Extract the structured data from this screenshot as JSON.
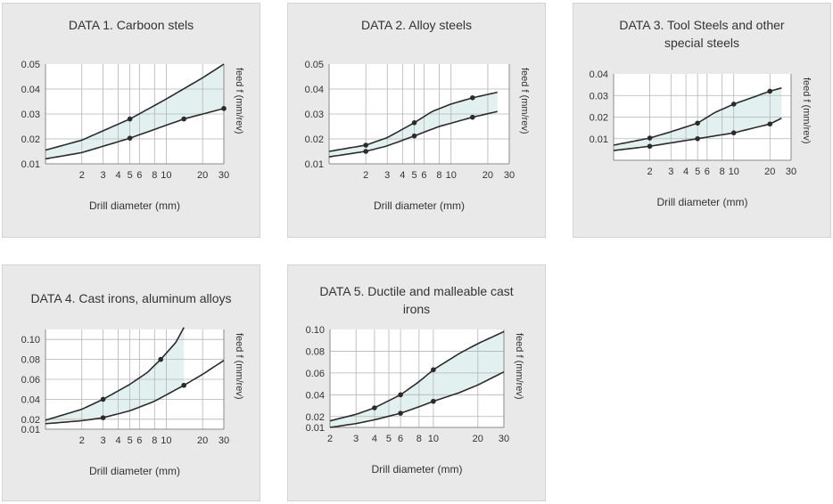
{
  "colors": {
    "panel_bg": "#e9e9e9",
    "plot_bg": "#ffffff",
    "band_fill": "#e3f0f0",
    "line": "#2b2b2b",
    "grid": "#b4b4b4",
    "text": "#333333"
  },
  "chart_data": [
    {
      "type": "line",
      "title": "DATA 1. Carboon stels",
      "xlabel": "Drill diameter (mm)",
      "ylabel": "feed f (mm/rev)",
      "x_scale": "log",
      "xlim": [
        1,
        30
      ],
      "ylim": [
        0.01,
        0.05
      ],
      "xticks": [
        2,
        3,
        4,
        5,
        6,
        8,
        10,
        20,
        30
      ],
      "xtick_labels": [
        "2",
        "3",
        "4",
        "5",
        "6",
        "8",
        "10",
        "20",
        "30"
      ],
      "yticks": [
        0.01,
        0.02,
        0.03,
        0.04,
        0.05
      ],
      "ytick_labels": [
        "0.01",
        "0.02",
        "0.03",
        "0.04",
        "0.05"
      ],
      "grid": true,
      "shaded_between_series": true,
      "series": [
        {
          "x": [
            1,
            2,
            5,
            10,
            20,
            30
          ],
          "y": [
            0.0155,
            0.0195,
            0.028,
            0.036,
            0.0445,
            0.05
          ],
          "markers": [
            5
          ]
        },
        {
          "x": [
            1,
            2,
            5,
            14,
            30
          ],
          "y": [
            0.012,
            0.0145,
            0.0203,
            0.028,
            0.0322
          ],
          "markers": [
            5,
            14,
            30
          ]
        }
      ]
    },
    {
      "type": "line",
      "title": "DATA 2. Alloy steels",
      "xlabel": "Drill diameter (mm)",
      "ylabel": "feed f (mm/rev)",
      "x_scale": "log",
      "xlim": [
        1,
        30
      ],
      "ylim": [
        0.01,
        0.05
      ],
      "xticks": [
        2,
        3,
        4,
        5,
        6,
        8,
        10,
        20,
        30
      ],
      "xtick_labels": [
        "2",
        "3",
        "4",
        "5",
        "6",
        "8",
        "10",
        "20",
        "30"
      ],
      "yticks": [
        0.01,
        0.02,
        0.03,
        0.04,
        0.05
      ],
      "ytick_labels": [
        "0.01",
        "0.02",
        "0.03",
        "0.04",
        "0.05"
      ],
      "grid": true,
      "shaded_between_series": true,
      "series": [
        {
          "x": [
            1,
            2,
            3,
            5,
            7,
            10,
            15,
            24
          ],
          "y": [
            0.015,
            0.0175,
            0.0205,
            0.0265,
            0.031,
            0.034,
            0.0365,
            0.0387
          ],
          "markers": [
            2,
            5,
            15
          ]
        },
        {
          "x": [
            1,
            2,
            3,
            5,
            8,
            15,
            24
          ],
          "y": [
            0.0128,
            0.015,
            0.0172,
            0.0212,
            0.025,
            0.0287,
            0.031
          ],
          "markers": [
            2,
            5,
            15
          ]
        }
      ]
    },
    {
      "type": "line",
      "title": "DATA 3. Tool Steels and other special steels",
      "xlabel": "Drill diameter (mm)",
      "ylabel": "feed f (mm/rev)",
      "x_scale": "log",
      "xlim": [
        1,
        30
      ],
      "ylim": [
        0,
        0.04
      ],
      "xticks": [
        2,
        3,
        4,
        5,
        6,
        8,
        10,
        20,
        30
      ],
      "xtick_labels": [
        "2",
        "3",
        "4",
        "5",
        "6",
        "8",
        "10",
        "20",
        "30"
      ],
      "yticks": [
        0.01,
        0.02,
        0.03,
        0.04
      ],
      "ytick_labels": [
        "0.01",
        "0.02",
        "0.03",
        "0.04"
      ],
      "grid": true,
      "shaded_between_series": true,
      "series": [
        {
          "x": [
            1,
            2,
            3,
            5,
            7,
            10,
            15,
            20,
            25
          ],
          "y": [
            0.007,
            0.0103,
            0.0132,
            0.0172,
            0.0222,
            0.026,
            0.0295,
            0.032,
            0.0335
          ],
          "markers": [
            2,
            5,
            10,
            20
          ]
        },
        {
          "x": [
            1,
            2,
            5,
            10,
            20,
            25
          ],
          "y": [
            0.0045,
            0.0065,
            0.01,
            0.0127,
            0.0168,
            0.0195
          ],
          "markers": [
            2,
            5,
            10,
            20
          ]
        }
      ]
    },
    {
      "type": "line",
      "title": "DATA 4. Cast irons, aluminum alloys",
      "xlabel": "Drill diameter (mm)",
      "ylabel": "feed f (mm/rev)",
      "x_scale": "log",
      "xlim": [
        1,
        30
      ],
      "ylim": [
        0.01,
        0.11
      ],
      "xticks": [
        2,
        3,
        4,
        5,
        6,
        8,
        10,
        20,
        30
      ],
      "xtick_labels": [
        "2",
        "3",
        "4",
        "5",
        "6",
        "8",
        "10",
        "20",
        "30"
      ],
      "yticks": [
        0.01,
        0.02,
        0.04,
        0.06,
        0.08,
        0.1
      ],
      "ytick_labels": [
        "0.01",
        "0.02",
        "0.04",
        "0.06",
        "0.08",
        "0.10"
      ],
      "grid": true,
      "shaded_between_series": true,
      "series": [
        {
          "x": [
            1,
            2,
            3,
            5,
            7,
            9,
            12,
            14
          ],
          "y": [
            0.019,
            0.03,
            0.04,
            0.055,
            0.067,
            0.08,
            0.097,
            0.112
          ],
          "markers": [
            3,
            9
          ]
        },
        {
          "x": [
            1,
            2,
            3,
            5,
            8,
            14,
            20,
            30
          ],
          "y": [
            0.0155,
            0.0185,
            0.0215,
            0.0285,
            0.038,
            0.054,
            0.065,
            0.079
          ],
          "markers": [
            3,
            14
          ]
        }
      ]
    },
    {
      "type": "line",
      "title": "DATA 5. Ductile and malleable cast irons",
      "xlabel": "Drill diameter (mm)",
      "ylabel": "feed f (mm/rev)",
      "x_scale": "log",
      "xlim": [
        2,
        30
      ],
      "ylim": [
        0.01,
        0.1
      ],
      "xticks": [
        2,
        3,
        4,
        5,
        6,
        8,
        10,
        20,
        30
      ],
      "xtick_labels": [
        "2",
        "3",
        "4",
        "5",
        "6",
        "8",
        "10",
        "20",
        "30"
      ],
      "yticks": [
        0.01,
        0.02,
        0.04,
        0.06,
        0.08,
        0.1
      ],
      "ytick_labels": [
        "0.01",
        "0.02",
        "0.04",
        "0.06",
        "0.08",
        "0.10"
      ],
      "grid": true,
      "shaded_between_series": true,
      "series": [
        {
          "x": [
            2,
            3,
            4,
            6,
            8,
            10,
            15,
            20,
            30
          ],
          "y": [
            0.016,
            0.022,
            0.028,
            0.04,
            0.052,
            0.063,
            0.078,
            0.087,
            0.098
          ],
          "markers": [
            4,
            6,
            10
          ]
        },
        {
          "x": [
            2,
            3,
            4,
            6,
            8,
            10,
            15,
            20,
            30
          ],
          "y": [
            0.01,
            0.0135,
            0.017,
            0.023,
            0.029,
            0.034,
            0.042,
            0.049,
            0.061
          ],
          "markers": [
            6,
            10
          ]
        }
      ]
    }
  ]
}
